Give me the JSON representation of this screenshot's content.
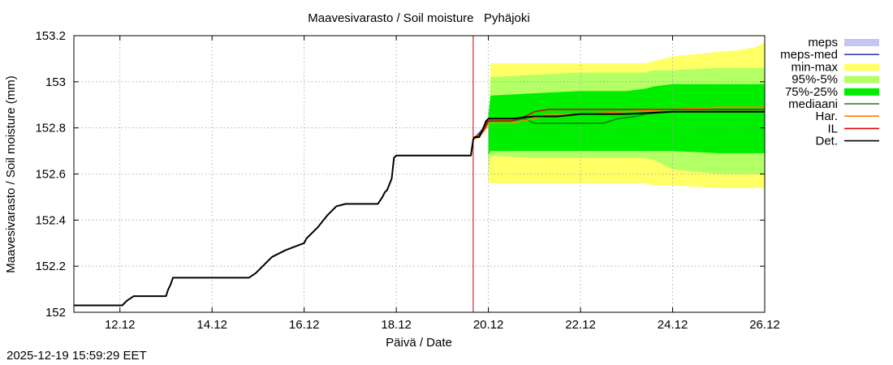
{
  "chart_data": {
    "type": "line",
    "title": "Maavesivarasto / Soil moisture   Pyhäjoki",
    "xlabel": "Päivä / Date",
    "ylabel": "Maavesivarasto / Soil moisture (mm)",
    "xlim": [
      11.0,
      26.0
    ],
    "ylim": [
      152.0,
      153.2
    ],
    "x_unit": "days since 2025-12-01 (12.12 = 12.0)",
    "xtick_values": [
      12,
      14,
      16,
      18,
      20,
      22,
      24,
      26
    ],
    "xtick_labels": [
      "12.12",
      "14.12",
      "16.12",
      "18.12",
      "20.12",
      "22.12",
      "24.12",
      "26.12"
    ],
    "ytick_values": [
      152.0,
      152.2,
      152.4,
      152.6,
      152.8,
      153.0,
      153.2
    ],
    "ytick_labels": [
      "152",
      "152.2",
      "152.4",
      "152.6",
      "152.8",
      "153",
      "153.2"
    ],
    "grid": true,
    "legend_position": "right",
    "forecast_start": 19.67,
    "legend": [
      {
        "label": "meps",
        "kind": "band",
        "color": "#c4c4f5"
      },
      {
        "label": "meps-med",
        "kind": "line",
        "color": "#3b3bb4"
      },
      {
        "label": "min-max",
        "kind": "band",
        "color": "#ffff66"
      },
      {
        "label": "95%-5%",
        "kind": "band",
        "color": "#b3ff66"
      },
      {
        "label": "75%-25%",
        "kind": "band",
        "color": "#00ee00"
      },
      {
        "label": "mediaani",
        "kind": "line",
        "color": "#1a7a1a"
      },
      {
        "label": "Har.",
        "kind": "line",
        "color": "#ff8000"
      },
      {
        "label": "IL",
        "kind": "line",
        "color": "#dd0000"
      },
      {
        "label": "Det.",
        "kind": "line",
        "color": "#000000"
      }
    ],
    "bands": [
      {
        "name": "min-max",
        "color": "#ffff66",
        "x": [
          20.0,
          20.05,
          21.0,
          22.0,
          23.0,
          23.4,
          23.6,
          24.0,
          25.0,
          25.5,
          25.8,
          26.0
        ],
        "low": [
          152.57,
          152.56,
          152.56,
          152.56,
          152.56,
          152.56,
          152.55,
          152.55,
          152.54,
          152.54,
          152.54,
          152.54
        ],
        "high": [
          152.76,
          153.08,
          153.08,
          153.08,
          153.08,
          153.08,
          153.09,
          153.11,
          153.13,
          153.14,
          153.15,
          153.17
        ]
      },
      {
        "name": "95%-5%",
        "color": "#b3ff66",
        "x": [
          20.0,
          20.05,
          21.0,
          22.0,
          23.0,
          23.4,
          23.6,
          24.0,
          25.0,
          26.0
        ],
        "low": [
          152.6,
          152.68,
          152.67,
          152.67,
          152.67,
          152.67,
          152.66,
          152.62,
          152.6,
          152.6
        ],
        "high": [
          152.8,
          153.02,
          153.03,
          153.04,
          153.04,
          153.04,
          153.05,
          153.05,
          153.06,
          153.06
        ]
      },
      {
        "name": "75%-25%",
        "color": "#00ee00",
        "x": [
          20.0,
          20.05,
          21.0,
          22.0,
          23.0,
          23.4,
          23.6,
          24.0,
          25.0,
          26.0
        ],
        "low": [
          152.68,
          152.7,
          152.7,
          152.7,
          152.7,
          152.7,
          152.7,
          152.7,
          152.69,
          152.69
        ],
        "high": [
          152.86,
          152.94,
          152.95,
          152.96,
          152.96,
          152.97,
          152.98,
          152.99,
          152.99,
          152.99
        ]
      }
    ],
    "series": [
      {
        "name": "Det.",
        "color": "#000000",
        "x": [
          11.0,
          12.05,
          12.15,
          12.3,
          12.5,
          13.0,
          13.05,
          13.1,
          13.15,
          13.3,
          13.5,
          14.0,
          14.5,
          14.8,
          14.95,
          15.1,
          15.3,
          15.6,
          16.0,
          16.05,
          16.3,
          16.5,
          16.7,
          16.9,
          17.0,
          17.1,
          17.5,
          17.6,
          17.7,
          17.75,
          17.8,
          17.9,
          17.95,
          18.0,
          18.5,
          19.0,
          19.5,
          19.62,
          19.67,
          19.7,
          19.8,
          19.85,
          19.95,
          20.0,
          20.5,
          21.0,
          21.5,
          22.0,
          23.0,
          24.0,
          25.0,
          26.0
        ],
        "values": [
          152.03,
          152.03,
          152.05,
          152.07,
          152.07,
          152.07,
          152.1,
          152.12,
          152.15,
          152.15,
          152.15,
          152.15,
          152.15,
          152.15,
          152.17,
          152.2,
          152.24,
          152.27,
          152.3,
          152.32,
          152.37,
          152.42,
          152.46,
          152.47,
          152.47,
          152.47,
          152.47,
          152.47,
          152.5,
          152.52,
          152.53,
          152.58,
          152.67,
          152.68,
          152.68,
          152.68,
          152.68,
          152.68,
          152.75,
          152.76,
          152.76,
          152.78,
          152.83,
          152.84,
          152.84,
          152.85,
          152.85,
          152.86,
          152.86,
          152.87,
          152.87,
          152.87
        ]
      },
      {
        "name": "IL",
        "color": "#dd0000",
        "x": [
          19.67,
          19.7,
          19.8,
          19.9,
          20.0,
          20.5,
          20.8,
          21.0,
          21.3,
          21.5,
          22.0,
          23.0,
          24.0,
          25.0,
          26.0
        ],
        "values": [
          152.75,
          152.76,
          152.77,
          152.79,
          152.83,
          152.83,
          152.85,
          152.87,
          152.88,
          152.88,
          152.88,
          152.88,
          152.88,
          152.88,
          152.88
        ]
      },
      {
        "name": "Har.",
        "color": "#ff8000",
        "x": [
          19.67,
          19.8,
          19.95,
          20.0,
          20.5,
          21.0,
          21.3,
          22.0,
          23.0,
          24.0,
          25.0,
          26.0
        ],
        "values": [
          152.75,
          152.76,
          152.8,
          152.82,
          152.82,
          152.84,
          152.86,
          152.86,
          152.87,
          152.88,
          152.89,
          152.89
        ]
      },
      {
        "name": "mediaani",
        "color": "#1a7a1a",
        "x": [
          19.67,
          19.9,
          20.0,
          20.5,
          20.8,
          21.0,
          22.0,
          22.5,
          22.8,
          23.2,
          23.4,
          24.0,
          25.0,
          26.0
        ],
        "values": [
          152.75,
          152.79,
          152.83,
          152.83,
          152.84,
          152.82,
          152.82,
          152.82,
          152.84,
          152.85,
          152.86,
          152.87,
          152.87,
          152.87
        ]
      },
      {
        "name": "meps-med",
        "color": "#3b3bb4",
        "x": [
          19.67,
          19.9,
          20.0,
          20.5,
          21.0,
          21.3
        ],
        "values": [
          152.75,
          152.8,
          152.84,
          152.84,
          152.85,
          152.85
        ]
      }
    ]
  },
  "footer": {
    "timestamp": "2025-12-19 15:59:29 EET"
  }
}
